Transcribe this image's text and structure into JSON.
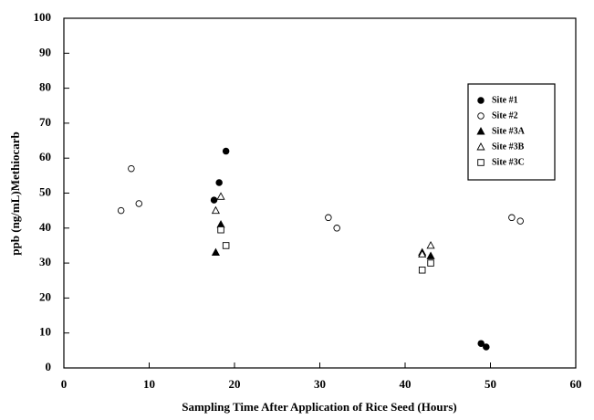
{
  "chart_data": {
    "type": "scatter",
    "x_label": "Sampling Time After Application of Rice Seed (Hours)",
    "y_label": "ppb (ng/mL)Methiocarb",
    "xlim": [
      0,
      60
    ],
    "xticks": [
      0,
      10,
      20,
      30,
      40,
      50,
      60
    ],
    "ylim": [
      0,
      100
    ],
    "yticks": [
      0,
      10,
      20,
      30,
      40,
      50,
      60,
      70,
      80,
      90,
      100
    ],
    "series": [
      {
        "name": "Site #1",
        "color": "#000000",
        "marker": "filled-circle",
        "x": [
          17.6,
          18.2,
          19.0,
          48.9,
          49.5
        ],
        "values": [
          48,
          53,
          62,
          7,
          6
        ]
      },
      {
        "name": "Site #2",
        "color": "#000000",
        "marker": "open-circle",
        "x": [
          6.7,
          8.8,
          7.9,
          31.0,
          32.0,
          52.5,
          53.5
        ],
        "values": [
          45,
          47,
          57,
          43,
          40,
          43,
          42
        ]
      },
      {
        "name": "Site #3A",
        "color": "#000000",
        "marker": "filled-triangle",
        "x": [
          17.8,
          18.4,
          42.0,
          43.0
        ],
        "values": [
          33,
          41,
          33,
          32
        ]
      },
      {
        "name": "Site #3B",
        "color": "#000000",
        "marker": "open-triangle",
        "x": [
          17.8,
          18.4,
          42.0,
          43.0
        ],
        "values": [
          45,
          49,
          32.5,
          35
        ]
      },
      {
        "name": "Site #3C",
        "color": "#000000",
        "marker": "open-square",
        "x": [
          18.4,
          19.0,
          42.0,
          43.0
        ],
        "values": [
          39.5,
          35,
          28,
          30
        ]
      }
    ],
    "legend": "upper-right"
  }
}
